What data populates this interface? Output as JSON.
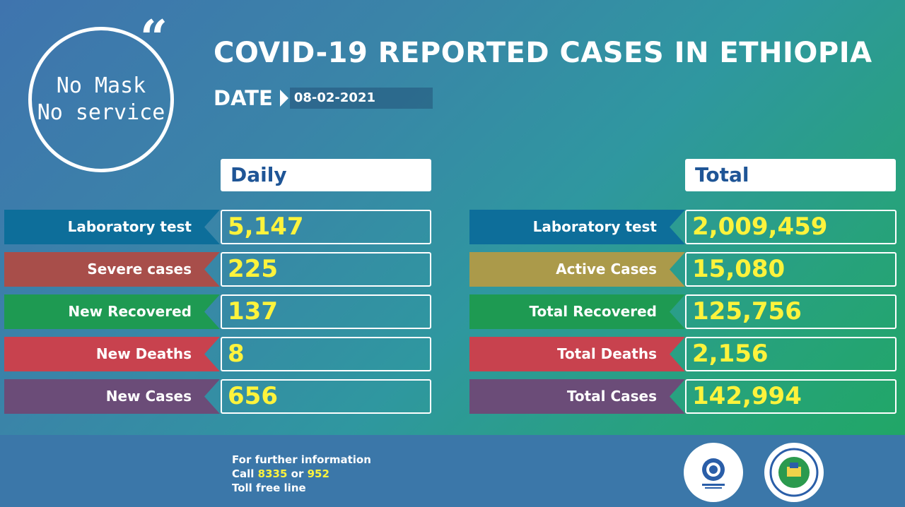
{
  "badge": {
    "line1": "No Mask",
    "line2": "No service",
    "quote": "“"
  },
  "title": "COVID-19 REPORTED CASES IN ETHIOPIA",
  "date": {
    "label": "DATE",
    "value": "08-02-2021"
  },
  "daily": {
    "header": "Daily",
    "rows": [
      {
        "label": "Laboratory test",
        "value": "5,147",
        "color": "#0d6e9a"
      },
      {
        "label": "Severe cases",
        "value": "225",
        "color": "#a84e4a"
      },
      {
        "label": "New Recovered",
        "value": "137",
        "color": "#1e9a52"
      },
      {
        "label": "New Deaths",
        "value": "8",
        "color": "#c8424e"
      },
      {
        "label": "New Cases",
        "value": "656",
        "color": "#6b4c78"
      }
    ]
  },
  "total": {
    "header": "Total",
    "rows": [
      {
        "label": "Laboratory test",
        "value": "2,009,459",
        "color": "#0d6e9a"
      },
      {
        "label": "Active Cases",
        "value": "15,080",
        "color": "#ab9a4a"
      },
      {
        "label": "Total Recovered",
        "value": "125,756",
        "color": "#1e9a52"
      },
      {
        "label": "Total Deaths",
        "value": "2,156",
        "color": "#c8424e"
      },
      {
        "label": "Total Cases",
        "value": "142,994",
        "color": "#6b4c78"
      }
    ]
  },
  "footer": {
    "line1": "For further information",
    "call_prefix": "Call",
    "number1": "8335",
    "or": "or",
    "number2": "952",
    "line3": "Toll free line"
  },
  "logos": [
    "ministry-of-health-logo",
    "ethiopian-public-health-institute-logo"
  ]
}
